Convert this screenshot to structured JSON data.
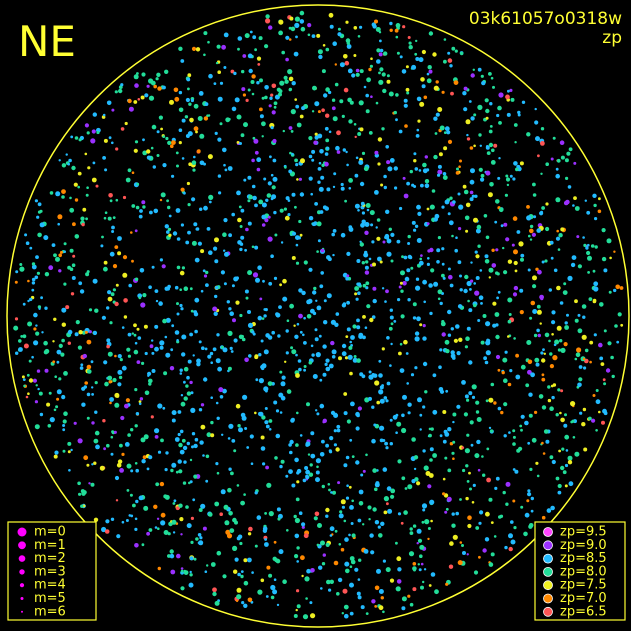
{
  "header": {
    "direction": "NE",
    "image_id": "03k61057o0318w",
    "mode": "zp"
  },
  "magnitude_legend": {
    "color": "#ff00ff",
    "items": [
      "m=0",
      "m=1",
      "m=2",
      "m=3",
      "m=4",
      "m=5",
      "m=6"
    ]
  },
  "zp_legend": {
    "items": [
      {
        "label": "zp=9.5",
        "color": "#ff44ff"
      },
      {
        "label": "zp=9.0",
        "color": "#9b30ff"
      },
      {
        "label": "zp=8.5",
        "color": "#22bbff"
      },
      {
        "label": "zp=8.0",
        "color": "#22dd99"
      },
      {
        "label": "zp=7.5",
        "color": "#eeee22"
      },
      {
        "label": "zp=7.0",
        "color": "#ff8800"
      },
      {
        "label": "zp=6.5",
        "color": "#ff5555"
      }
    ]
  }
}
